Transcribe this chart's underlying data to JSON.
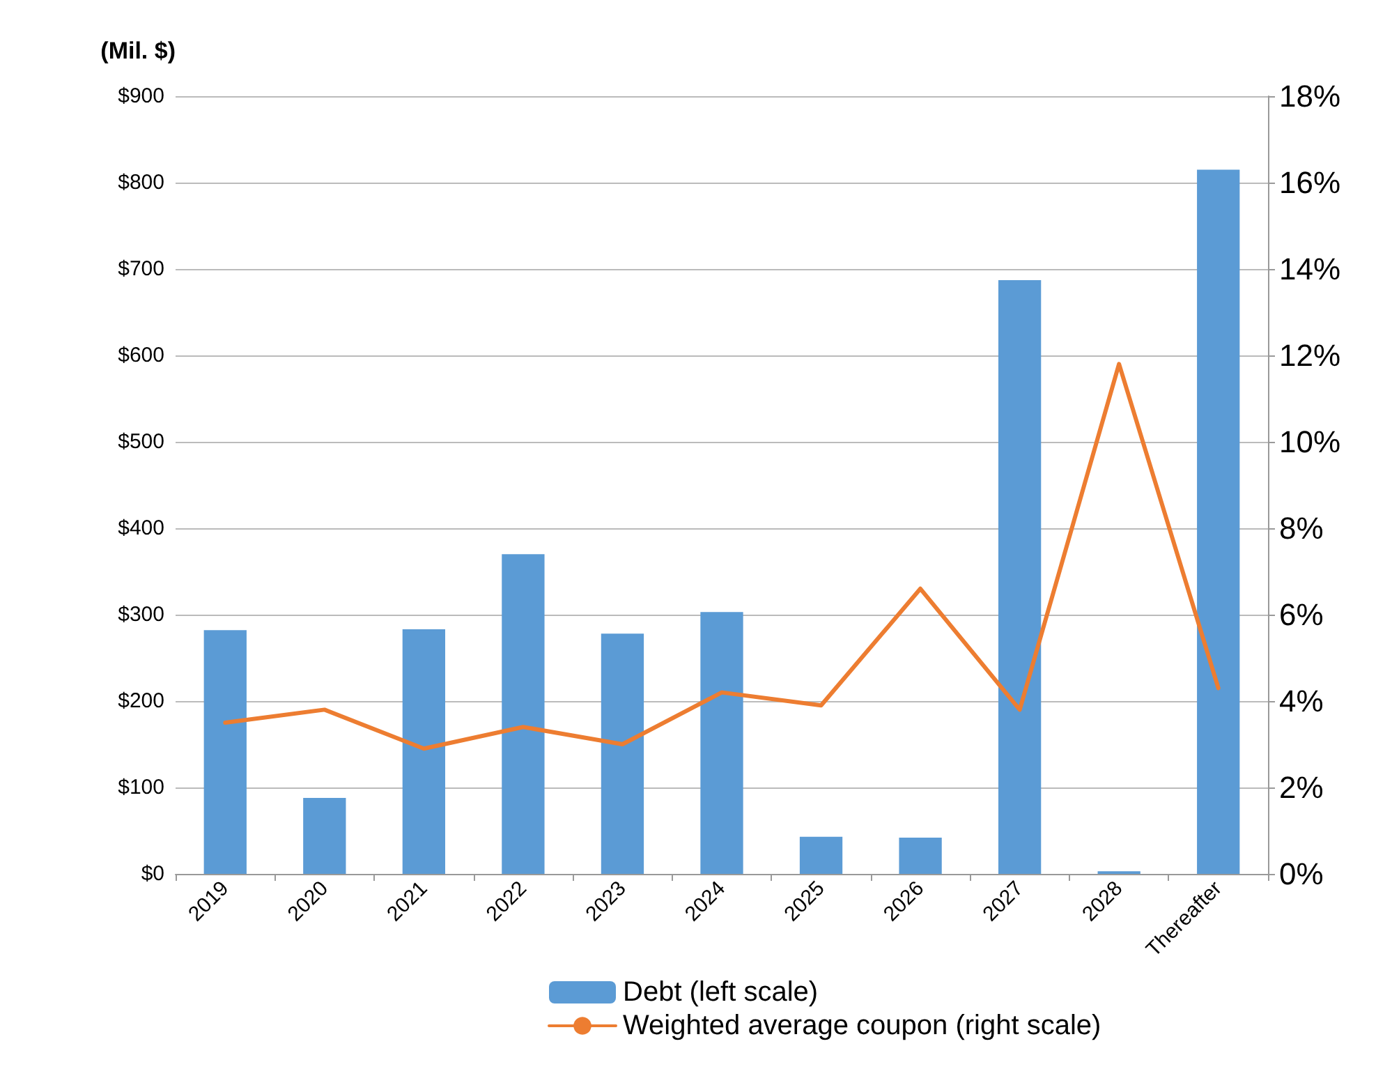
{
  "chart_data": {
    "type": "bar",
    "ylabel": "(Mil. $)",
    "categories": [
      "2019",
      "2020",
      "2021",
      "2022",
      "2023",
      "2024",
      "2025",
      "2026",
      "2027",
      "2028",
      "Thereafter"
    ],
    "series": [
      {
        "name": "Debt (left scale)",
        "color": "#5b9bd5",
        "values": [
          282,
          88,
          283,
          370,
          278,
          303,
          43,
          42,
          687,
          3,
          815
        ]
      },
      {
        "name": "Weighted average coupon (right scale)",
        "type": "line",
        "axis": "y2",
        "color": "#ed7d31",
        "values": [
          3.5,
          3.8,
          2.9,
          3.4,
          3.0,
          4.2,
          3.9,
          6.6,
          3.8,
          11.8,
          4.3
        ]
      }
    ],
    "ylim": [
      0,
      900
    ],
    "yticks": [
      {
        "value": 0,
        "label": "$0"
      },
      {
        "value": 100,
        "label": "$100"
      },
      {
        "value": 200,
        "label": "$200"
      },
      {
        "value": 300,
        "label": "$300"
      },
      {
        "value": 400,
        "label": "$400"
      },
      {
        "value": 500,
        "label": "$500"
      },
      {
        "value": 600,
        "label": "$600"
      },
      {
        "value": 700,
        "label": "$700"
      },
      {
        "value": 800,
        "label": "$800"
      },
      {
        "value": 900,
        "label": "$900"
      }
    ],
    "y2lim": [
      0,
      18
    ],
    "y2ticks": [
      {
        "value": 0,
        "label": "0%"
      },
      {
        "value": 2,
        "label": "2%"
      },
      {
        "value": 4,
        "label": "4%"
      },
      {
        "value": 6,
        "label": "6%"
      },
      {
        "value": 8,
        "label": "8%"
      },
      {
        "value": 10,
        "label": "10%"
      },
      {
        "value": 12,
        "label": "12%"
      },
      {
        "value": 14,
        "label": "14%"
      },
      {
        "value": 16,
        "label": "16%"
      },
      {
        "value": 18,
        "label": "18%"
      }
    ],
    "grid": "y",
    "legend": "bottom",
    "marker": "none",
    "line_style": "solid"
  }
}
